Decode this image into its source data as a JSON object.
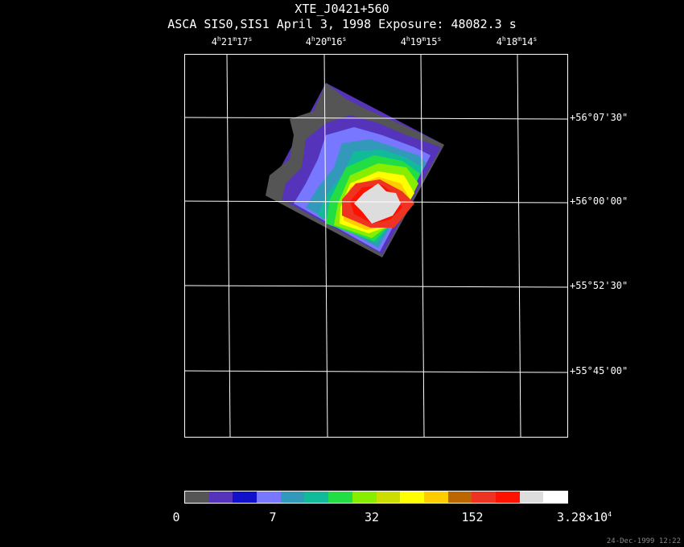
{
  "chart_data": {
    "type": "heatmap",
    "title": "XTE_J0421+560",
    "subtitle": "ASCA SIS0,SIS1 April 3, 1998 Exposure: 48082.3 s",
    "ra_ticks": [
      {
        "h": "4",
        "m": "21",
        "s": "17"
      },
      {
        "h": "4",
        "m": "20",
        "s": "16"
      },
      {
        "h": "4",
        "m": "19",
        "s": "15"
      },
      {
        "h": "4",
        "m": "18",
        "s": "14"
      }
    ],
    "dec_ticks": [
      "+56°07'30\"",
      "+56°00'00\"",
      "+55°52'30\"",
      "+55°45'00\""
    ],
    "colorbar": {
      "colors": [
        "#555555",
        "#5533bb",
        "#1111cc",
        "#7777ff",
        "#3399bb",
        "#11bb99",
        "#22dd44",
        "#88ee00",
        "#ccdd00",
        "#ffff00",
        "#ffcc00",
        "#bb6600",
        "#ee3322",
        "#ff1100",
        "#dddddd",
        "#ffffff"
      ],
      "labels": [
        "0",
        "7",
        "32",
        "152"
      ],
      "max_label": {
        "base": "3.28×10",
        "exp": "4"
      }
    },
    "grid": true
  },
  "timestamp": "24-Dec-1999 12:22"
}
